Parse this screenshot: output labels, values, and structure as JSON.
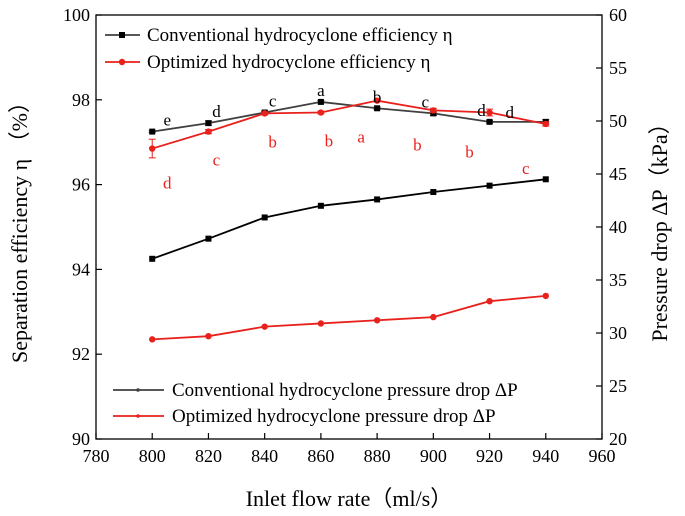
{
  "chart_data": {
    "type": "line",
    "xlabel": "Inlet flow rate（ml/s）",
    "ylabel_left": "Separation efficiency η （%）",
    "ylabel_right": "Pressure drop ΔP（kPa）",
    "xlim": [
      780,
      960
    ],
    "ylim_left": [
      90,
      100
    ],
    "ylim_right": [
      20,
      60
    ],
    "x_ticks": [
      "780",
      "800",
      "820",
      "840",
      "860",
      "880",
      "900",
      "920",
      "940",
      "960"
    ],
    "y_left_ticks": [
      "90",
      "92",
      "94",
      "96",
      "98",
      "100"
    ],
    "y_right_ticks": [
      "20",
      "25",
      "30",
      "35",
      "40",
      "45",
      "50",
      "55",
      "60"
    ],
    "x": [
      800,
      820,
      840,
      860,
      880,
      900,
      920,
      940
    ],
    "series": [
      {
        "name": "Conventional hydrocyclone efficiency η",
        "axis": "left",
        "color": "#404040",
        "marker": "square",
        "values": [
          97.25,
          97.45,
          97.7,
          97.95,
          97.8,
          97.68,
          97.48,
          97.48
        ],
        "errors": [
          0.02,
          0.05,
          0.03,
          0.03,
          0.03,
          0.05,
          0.03,
          0.05
        ],
        "letters": [
          "e",
          "d",
          "c",
          "a",
          "b",
          "c",
          "d",
          "d"
        ]
      },
      {
        "name": "Optimized hydrocyclone efficiency η",
        "axis": "left",
        "color": "#e8211c",
        "marker": "circle",
        "values": [
          96.85,
          97.25,
          97.68,
          97.7,
          97.98,
          97.75,
          97.7,
          97.43
        ],
        "errors": [
          0.22,
          0.05,
          0.03,
          0.03,
          0.03,
          0.05,
          0.08,
          0.05
        ],
        "letters": [
          "d",
          "c",
          "b",
          "b",
          "a",
          "b",
          "b",
          "c"
        ]
      },
      {
        "name": "Conventional hydrocyclone pressure drop ΔP",
        "axis": "right",
        "color": "#000000",
        "marker": "square",
        "values": [
          37.0,
          38.9,
          40.9,
          42.0,
          42.6,
          43.3,
          43.9,
          44.5
        ]
      },
      {
        "name": "Optimized hydrocyclone pressure drop ΔP",
        "axis": "right",
        "color": "#e8211c",
        "marker": "circle",
        "values": [
          29.4,
          29.7,
          30.6,
          30.9,
          31.2,
          31.5,
          33.0,
          33.5
        ]
      }
    ],
    "legend_top": [
      "Conventional hydrocyclone efficiency η",
      "Optimized hydrocyclone efficiency η"
    ],
    "legend_bottom": [
      "Conventional hydrocyclone pressure drop ΔP",
      "Optimized hydrocyclone pressure drop ΔP"
    ]
  }
}
